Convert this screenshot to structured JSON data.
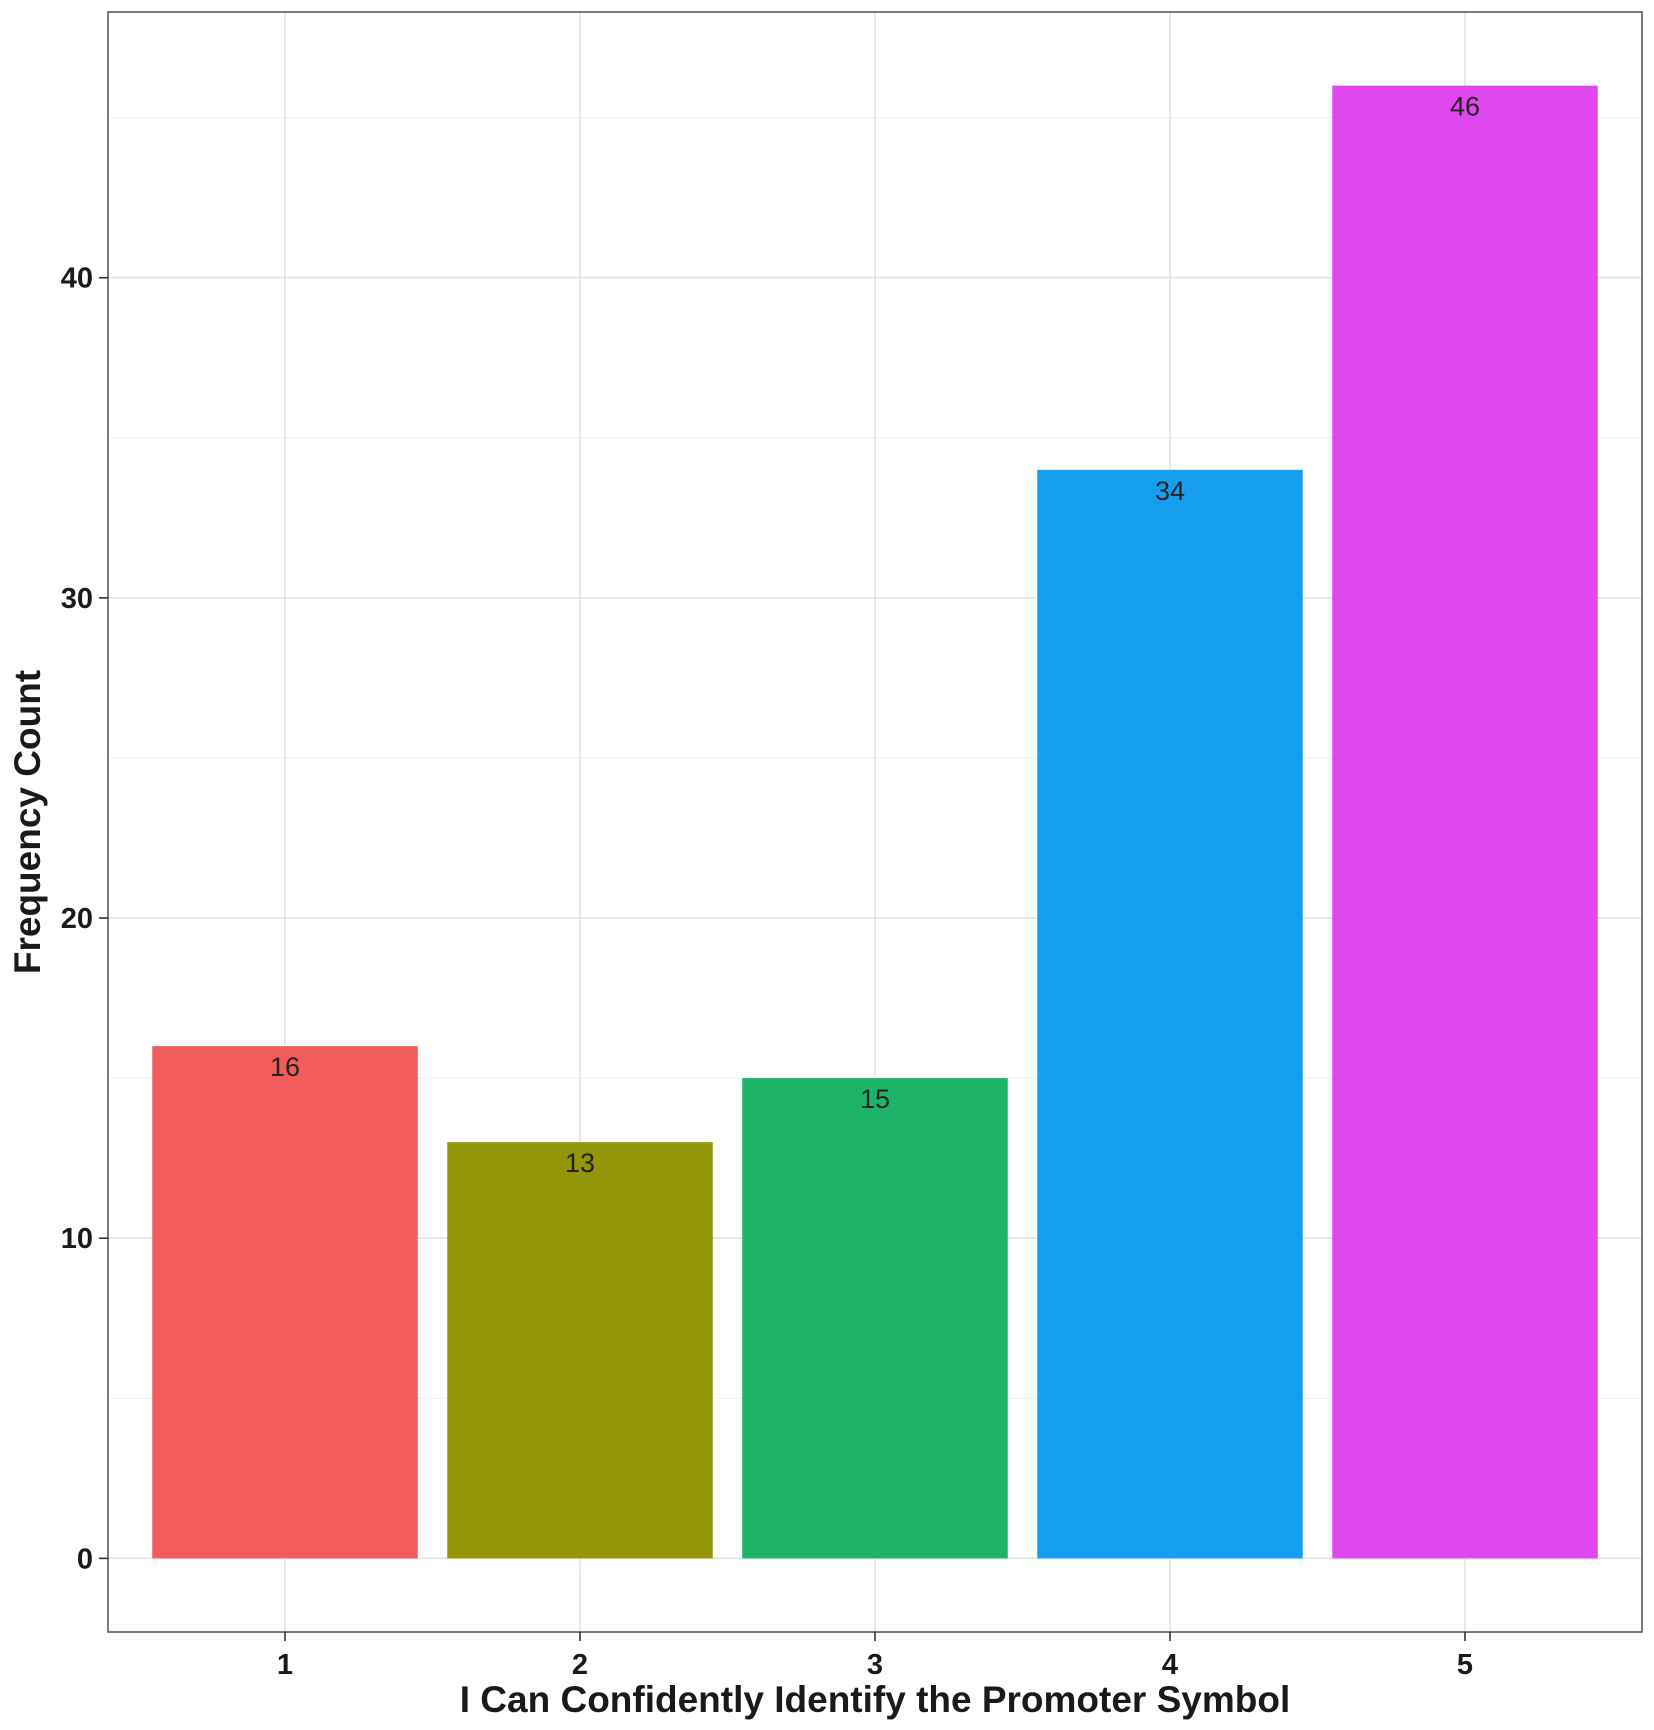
{
  "chart_data": {
    "type": "bar",
    "categories": [
      "1",
      "2",
      "3",
      "4",
      "5"
    ],
    "values": [
      16,
      13,
      15,
      34,
      46
    ],
    "data_labels": [
      "16",
      "13",
      "15",
      "34",
      "46"
    ],
    "bar_colors": [
      "#F25C5C",
      "#939606",
      "#1DB46A",
      "#169FF0",
      "#DE48EE"
    ],
    "title": "",
    "xlabel": "I Can Confidently Identify the Promoter Symbol",
    "ylabel": "Frequency Count",
    "yticks": [
      0,
      10,
      20,
      30,
      40
    ],
    "ytick_labels": [
      "0",
      "10",
      "20",
      "30",
      "40"
    ],
    "ylim": [
      -2.3,
      48.3
    ],
    "grid": true,
    "legend": "none"
  }
}
